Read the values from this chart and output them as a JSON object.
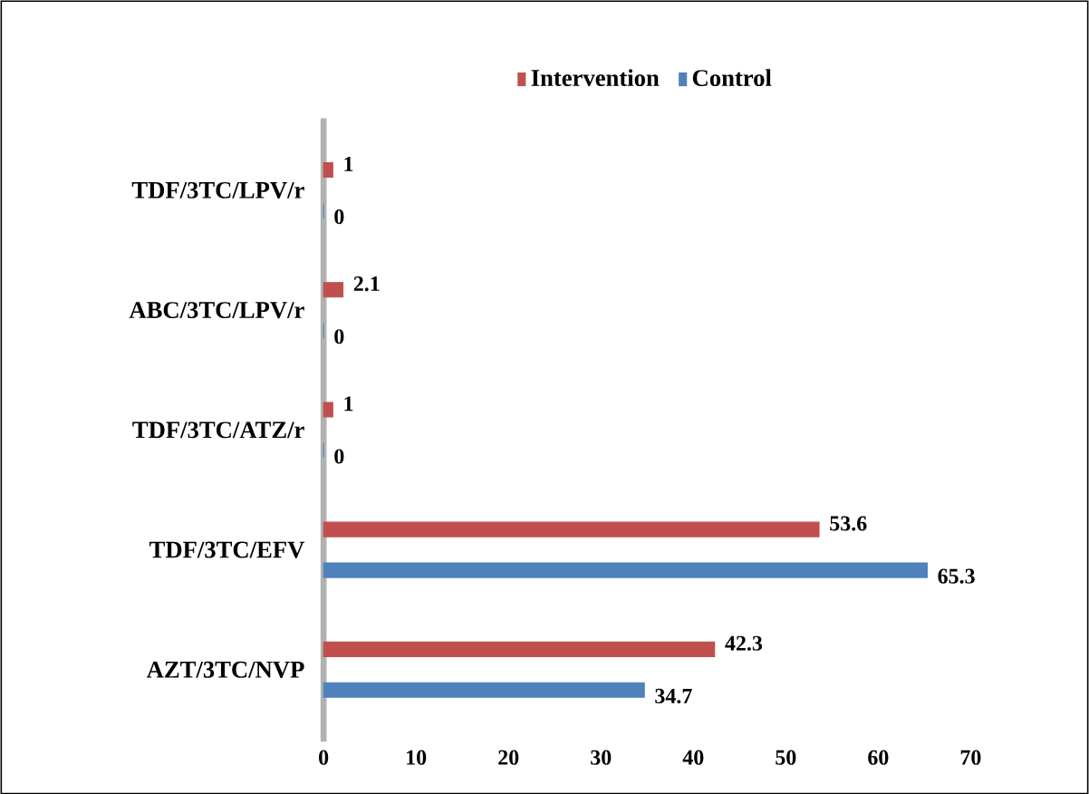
{
  "chart_data": {
    "type": "bar",
    "orientation": "horizontal",
    "categories": [
      "TDF/3TC/LPV/r",
      "ABC/3TC/LPV/r",
      "TDF/3TC/ATZ/r",
      "TDF/3TC/EFV",
      "AZT/3TC/NVP"
    ],
    "series": [
      {
        "name": "Intervention",
        "color": "#c0504d",
        "values": [
          1,
          2.1,
          1,
          53.6,
          42.3
        ]
      },
      {
        "name": "Control",
        "color": "#4f81bd",
        "values": [
          0,
          0,
          0,
          65.3,
          34.7
        ]
      }
    ],
    "xlim": [
      0,
      70
    ],
    "xticks": [
      0,
      10,
      20,
      30,
      40,
      50,
      60,
      70
    ],
    "data_labels": true,
    "legend": "top",
    "grid": false
  }
}
